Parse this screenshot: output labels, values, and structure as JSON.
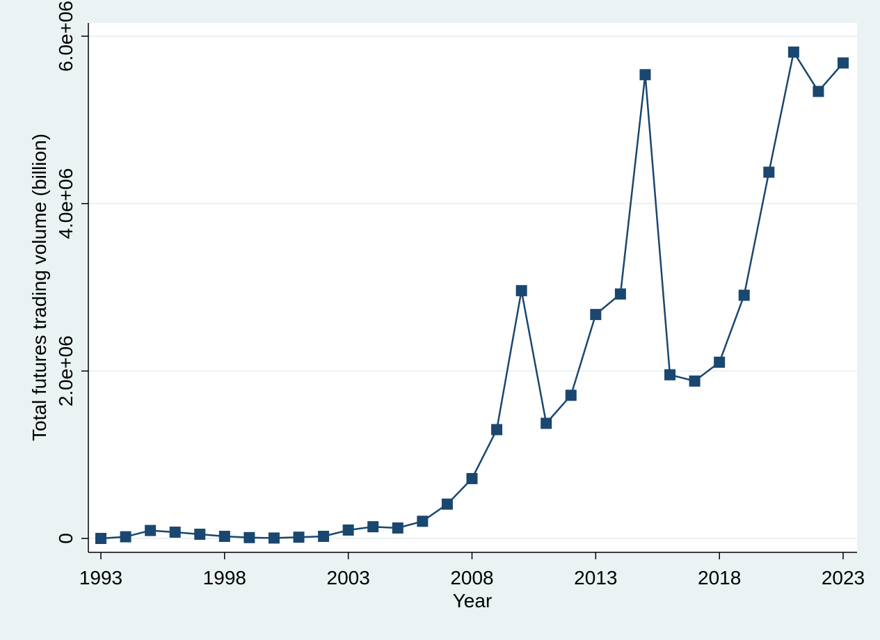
{
  "chart_data": {
    "type": "line",
    "title": "",
    "xlabel": "Year",
    "ylabel": "Total futures trading volume (billion)",
    "xlim": [
      1993,
      2023
    ],
    "ylim": [
      0,
      6000000
    ],
    "x_ticks": [
      1993,
      1998,
      2003,
      2008,
      2013,
      2018,
      2023
    ],
    "x_tick_labels": [
      "1993",
      "1998",
      "2003",
      "2008",
      "2013",
      "2018",
      "2023"
    ],
    "y_ticks": [
      0,
      2000000,
      4000000,
      6000000
    ],
    "y_tick_labels": [
      "0",
      "2.0e+06",
      "4.0e+06",
      "6.0e+06"
    ],
    "grid": true,
    "colors": {
      "series": "#1a476f",
      "background": "#eaf2f3",
      "plot": "#ffffff",
      "grid": "#eaf2f3"
    },
    "series": [
      {
        "name": "Total futures trading volume",
        "marker": "square",
        "x": [
          1993,
          1994,
          1995,
          1996,
          1997,
          1998,
          1999,
          2000,
          2001,
          2002,
          2003,
          2004,
          2005,
          2006,
          2007,
          2008,
          2009,
          2010,
          2011,
          2012,
          2013,
          2014,
          2015,
          2016,
          2017,
          2018,
          2019,
          2020,
          2021,
          2022,
          2023
        ],
        "values": [
          0,
          20000,
          95000,
          75000,
          50000,
          25000,
          10000,
          5000,
          15000,
          25000,
          100000,
          140000,
          125000,
          205000,
          410000,
          715000,
          1300000,
          2960000,
          1375000,
          1710000,
          2675000,
          2920000,
          5540000,
          1955000,
          1880000,
          2105000,
          2905000,
          4375000,
          5810000,
          5340000,
          5680000
        ]
      }
    ]
  }
}
